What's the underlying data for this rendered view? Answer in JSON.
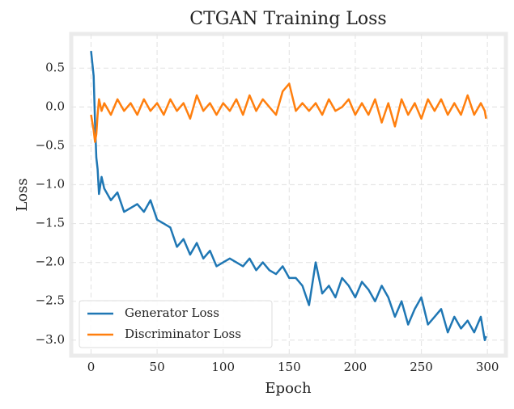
{
  "chart_data": {
    "type": "line",
    "title": "CTGAN Training Loss",
    "x_label": "Epoch",
    "y_label": "Loss",
    "x": [
      0,
      2,
      3,
      4,
      5,
      6,
      8,
      10,
      15,
      20,
      25,
      30,
      35,
      40,
      45,
      50,
      55,
      60,
      65,
      70,
      75,
      80,
      85,
      90,
      95,
      100,
      105,
      110,
      115,
      120,
      125,
      130,
      135,
      140,
      145,
      150,
      155,
      160,
      165,
      170,
      175,
      180,
      185,
      190,
      195,
      200,
      205,
      210,
      215,
      220,
      225,
      230,
      235,
      240,
      245,
      250,
      255,
      260,
      265,
      270,
      275,
      280,
      285,
      290,
      295,
      298,
      299
    ],
    "series": [
      {
        "name": "Generator Loss",
        "color": "#1f77b4",
        "values": [
          0.72,
          0.4,
          -0.2,
          -0.65,
          -0.8,
          -1.12,
          -0.9,
          -1.05,
          -1.2,
          -1.1,
          -1.35,
          -1.3,
          -1.25,
          -1.35,
          -1.2,
          -1.45,
          -1.5,
          -1.55,
          -1.8,
          -1.7,
          -1.9,
          -1.75,
          -1.95,
          -1.85,
          -2.05,
          -2.0,
          -1.95,
          -2.0,
          -2.05,
          -1.95,
          -2.1,
          -2.0,
          -2.1,
          -2.15,
          -2.05,
          -2.2,
          -2.2,
          -2.3,
          -2.55,
          -2.0,
          -2.4,
          -2.3,
          -2.45,
          -2.2,
          -2.3,
          -2.45,
          -2.25,
          -2.35,
          -2.5,
          -2.3,
          -2.45,
          -2.7,
          -2.5,
          -2.8,
          -2.6,
          -2.45,
          -2.8,
          -2.7,
          -2.6,
          -2.9,
          -2.7,
          -2.85,
          -2.75,
          -2.9,
          -2.7,
          -3.0,
          -2.95
        ]
      },
      {
        "name": "Discriminator Loss",
        "color": "#ff7f0e",
        "values": [
          -0.1,
          -0.3,
          -0.45,
          -0.35,
          -0.1,
          0.1,
          -0.05,
          0.05,
          -0.1,
          0.1,
          -0.05,
          0.05,
          -0.1,
          0.1,
          -0.05,
          0.05,
          -0.1,
          0.1,
          -0.05,
          0.05,
          -0.15,
          0.15,
          -0.05,
          0.05,
          -0.1,
          0.05,
          -0.05,
          0.1,
          -0.1,
          0.15,
          -0.05,
          0.1,
          0,
          -0.1,
          0.2,
          0.3,
          -0.05,
          0.05,
          -0.05,
          0.05,
          -0.1,
          0.1,
          -0.05,
          0,
          0.1,
          -0.1,
          0.05,
          -0.1,
          0.1,
          -0.2,
          0.05,
          -0.25,
          0.1,
          -0.1,
          0.05,
          -0.15,
          0.1,
          -0.05,
          0.1,
          -0.1,
          0.05,
          -0.1,
          0.15,
          -0.1,
          0.05,
          -0.05,
          -0.15
        ]
      }
    ],
    "xlim": [
      -15,
      314
    ],
    "ylim": [
      -3.2,
      0.94
    ],
    "xticks": [
      0,
      50,
      100,
      150,
      200,
      250,
      300
    ],
    "yticks": [
      {
        "value": -3.0,
        "label": "−3.0"
      },
      {
        "value": -2.5,
        "label": "−2.5"
      },
      {
        "value": -2.0,
        "label": "−2.0"
      },
      {
        "value": -1.5,
        "label": "−1.5"
      },
      {
        "value": -1.0,
        "label": "−1.0"
      },
      {
        "value": -0.5,
        "label": "−0.5"
      },
      {
        "value": 0.0,
        "label": "0.0"
      },
      0.5
    ],
    "grid": true,
    "legend": "lower left"
  }
}
